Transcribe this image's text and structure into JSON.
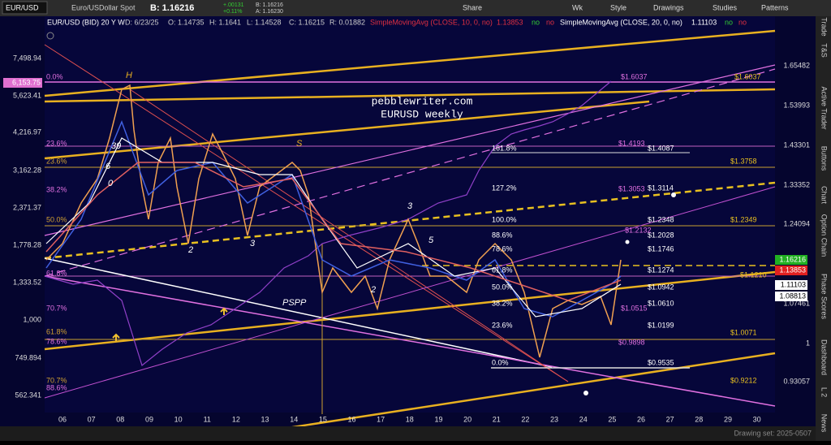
{
  "toolbar": {
    "symbol": "EUR/USD",
    "description": "Euro/USDollar Spot",
    "bid": "B: 1.16216",
    "change": "+.00131",
    "change_pct": "+0.11%",
    "bid_small": "B: 1.16216",
    "ask_small": "A: 1.16230",
    "buttons": [
      "Share",
      "Wk",
      "Style",
      "Drawings",
      "Studies",
      "Patterns"
    ]
  },
  "header": {
    "symbol_info": "EUR/USD (BID) 20 Y W",
    "date": "D: 6/23/25",
    "open": "O: 1.14735",
    "high": "H: 1.1641",
    "low": "L: 1.14528",
    "close": "C: 1.16215",
    "range": "R: 0.01882",
    "study1": "SimpleMovingAvg (CLOSE, 10, 0, no)",
    "study1_value": "1.13853",
    "study2": "SimpleMovingAvg (CLOSE, 20, 0, no)",
    "study2_value": "1.11103",
    "flag": "no"
  },
  "watermark": [
    "pebblewriter.com",
    "EURUSD weekly"
  ],
  "left_axis": [
    "7,498.94",
    "5,623.41",
    "4,216.97",
    "3,162.28",
    "2,371.37",
    "1,778.28",
    "1,333.52",
    "1,000",
    "749.894",
    "562.341"
  ],
  "left_badge": "6,153.75",
  "right_axis": [
    "1.65482",
    "1.53993",
    "1.43301",
    "1.33352",
    "1.24094",
    "1.07461",
    "1",
    "0.93057"
  ],
  "right_badges": [
    "1.16216",
    "1.13853",
    "1.11103",
    "1.08813"
  ],
  "x_axis": [
    "06",
    "07",
    "08",
    "09",
    "10",
    "11",
    "12",
    "13",
    "14",
    "15",
    "16",
    "17",
    "18",
    "19",
    "20",
    "21",
    "22",
    "23",
    "24",
    "25",
    "26",
    "27",
    "28",
    "29",
    "30"
  ],
  "left_fibs": [
    "0.0%",
    "23.6%",
    "23.6%",
    "38.2%",
    "50.0%",
    "61.8%",
    "70.7%",
    "61.8%",
    "78.6%",
    "70.7%",
    "88.6%"
  ],
  "right_fib_pcts": [
    "161.8%",
    "127.2%",
    "100.0%",
    "88.6%",
    "78.6%",
    "61.8%",
    "50.0%",
    "38.2%",
    "23.6%",
    "0.0%"
  ],
  "right_fib_values": [
    "$1.4087",
    "$1.3114",
    "$1.2348",
    "$1.2028",
    "$1.1746",
    "$1.1274",
    "$1.0942",
    "$1.0610",
    "$1.0199",
    "$0.9535"
  ],
  "yellow_levels": [
    "$1.6037",
    "$1.3758",
    "$1.2349",
    "$1.1210",
    "$1.0071",
    "$0.9212"
  ],
  "pink_levels": [
    "$1.6037",
    "$1.4193",
    "$1.3053",
    "$1.2132",
    "$1.0515",
    "$0.9898"
  ],
  "wave_labels": [
    "H",
    "S",
    "39",
    "6",
    "0",
    "2",
    "3",
    "3",
    "5",
    "2",
    "PSPP"
  ],
  "side_tabs": [
    "Trade",
    "T&S",
    "Active Trader",
    "Buttons",
    "Chart",
    "Option Chain",
    "Phase Scores",
    "Dashboard",
    "L 2",
    "News"
  ],
  "status": "Drawing set: 2025-0507"
}
